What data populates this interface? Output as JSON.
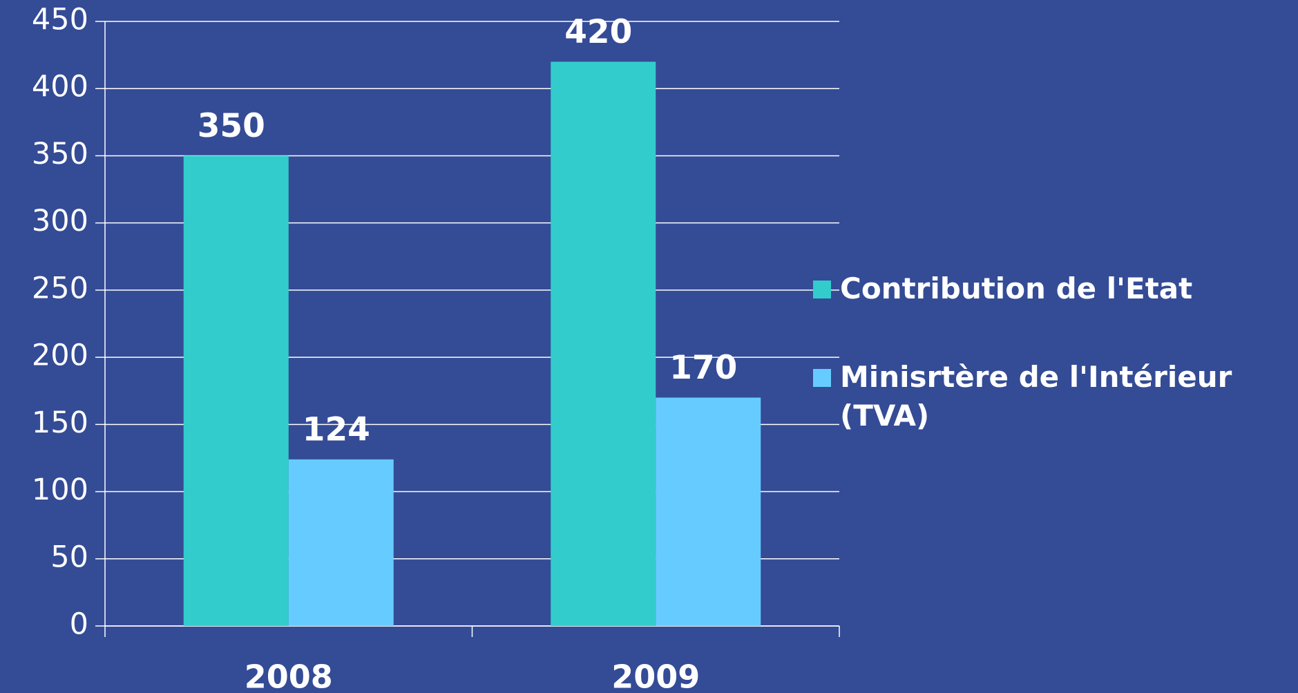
{
  "chart_data": {
    "type": "bar",
    "categories": [
      "2008",
      "2009"
    ],
    "series": [
      {
        "name": "Contribution de l'Etat",
        "color": "#33cccc",
        "values": [
          350,
          420
        ]
      },
      {
        "name": "Minisrtère de l'Intérieur (TVA)",
        "color": "#66ccff",
        "values": [
          124,
          170
        ]
      }
    ],
    "ylim": [
      0,
      450
    ],
    "yticks": [
      0,
      50,
      100,
      150,
      200,
      250,
      300,
      350,
      400,
      450
    ],
    "grid": true,
    "legend": "right"
  }
}
